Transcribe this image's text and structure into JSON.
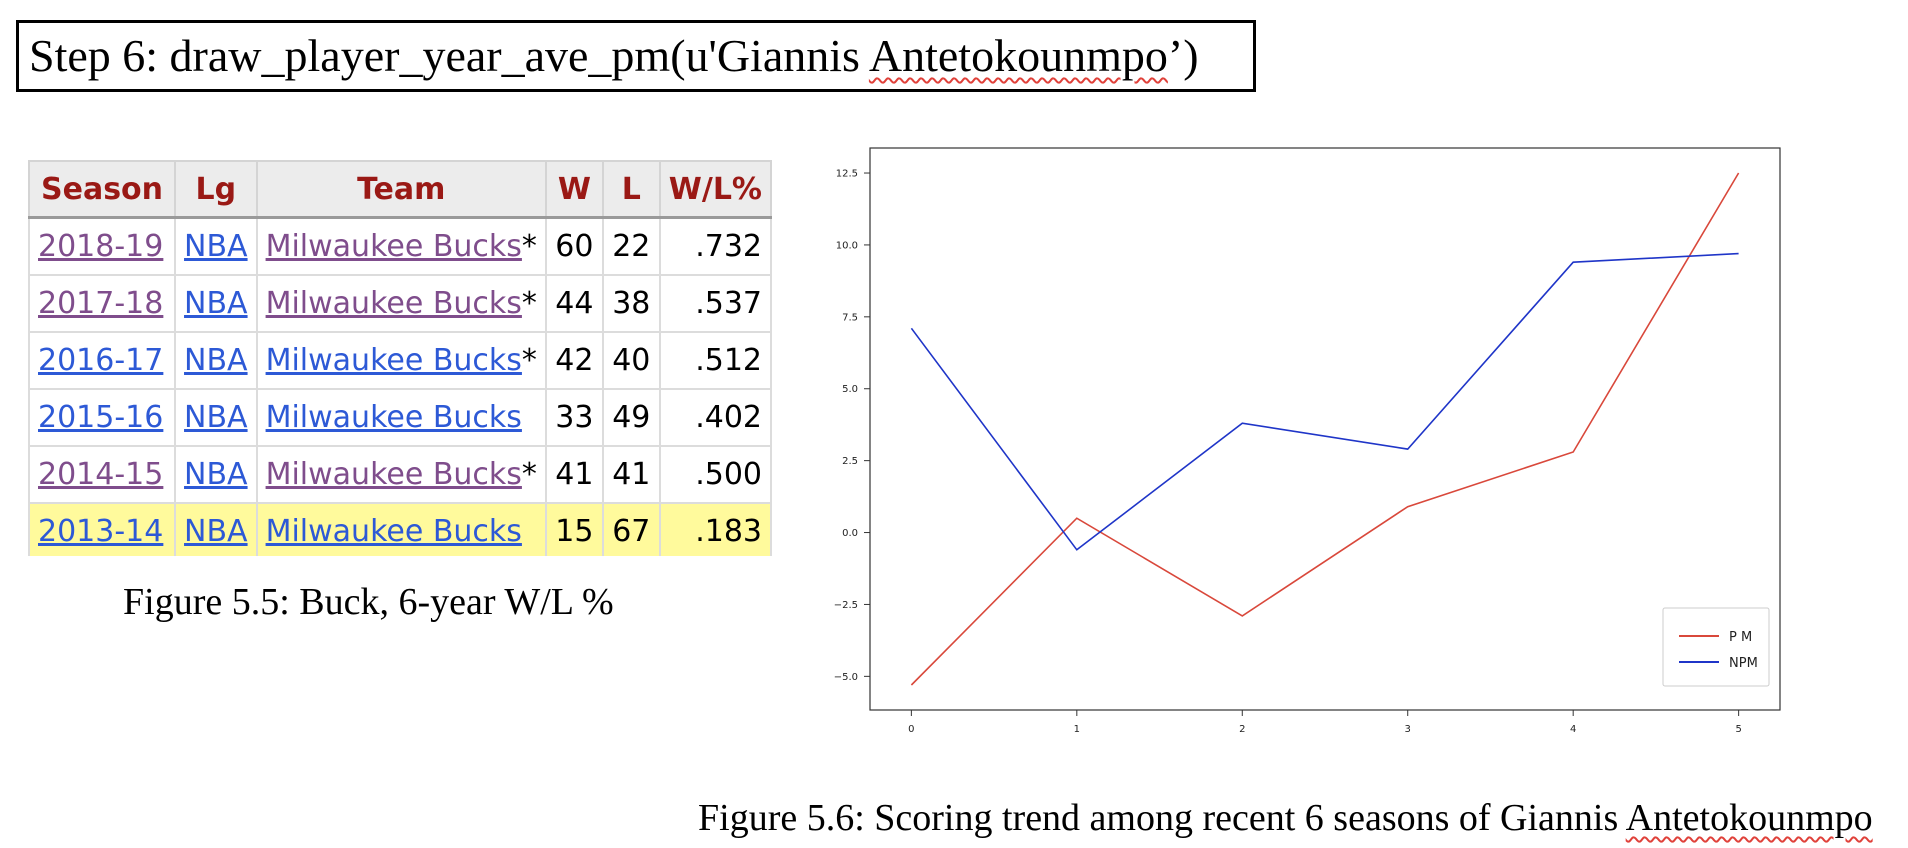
{
  "step": {
    "prefix": "Step 6: draw_player_year_ave_pm(u'Giannis ",
    "name": "Antetokounmpo",
    "suffix": "’)"
  },
  "table": {
    "headers": [
      "Season",
      "Lg",
      "Team",
      "W",
      "L",
      "W/L%"
    ],
    "rows": [
      {
        "season": "2018-19",
        "lg": "NBA",
        "team": "Milwaukee Bucks",
        "mark": "*",
        "w": "60",
        "l": "22",
        "pct": ".732",
        "visited": true,
        "highlight": false
      },
      {
        "season": "2017-18",
        "lg": "NBA",
        "team": "Milwaukee Bucks",
        "mark": "*",
        "w": "44",
        "l": "38",
        "pct": ".537",
        "visited": true,
        "highlight": false
      },
      {
        "season": "2016-17",
        "lg": "NBA",
        "team": "Milwaukee Bucks",
        "mark": "*",
        "w": "42",
        "l": "40",
        "pct": ".512",
        "visited": false,
        "highlight": false
      },
      {
        "season": "2015-16",
        "lg": "NBA",
        "team": "Milwaukee Bucks",
        "mark": "",
        "w": "33",
        "l": "49",
        "pct": ".402",
        "visited": false,
        "highlight": false
      },
      {
        "season": "2014-15",
        "lg": "NBA",
        "team": "Milwaukee Bucks",
        "mark": "*",
        "w": "41",
        "l": "41",
        "pct": ".500",
        "visited": true,
        "highlight": false
      },
      {
        "season": "2013-14",
        "lg": "NBA",
        "team": "Milwaukee Bucks",
        "mark": "",
        "w": "15",
        "l": "67",
        "pct": ".183",
        "visited": false,
        "highlight": true
      }
    ],
    "caption": "Figure 5.5: Buck, 6-year W/L %"
  },
  "chart_caption": {
    "prefix": "Figure 5.6: Scoring trend among recent 6 seasons of Giannis ",
    "name": "Antetokounmpo"
  },
  "colors": {
    "visited_link": "#7f4d8c",
    "link": "#2d59d6",
    "header_text": "#9a1915",
    "highlight_row": "#fffa9c",
    "pm_line": "#d9483b",
    "npm_line": "#1f35c8"
  },
  "chart_data": {
    "type": "line",
    "x": [
      0,
      1,
      2,
      3,
      4,
      5
    ],
    "series": [
      {
        "name": "P M",
        "color": "#d9483b",
        "values": [
          -5.3,
          0.5,
          -2.9,
          0.9,
          2.8,
          12.5
        ]
      },
      {
        "name": "NPM",
        "color": "#1f35c8",
        "values": [
          7.1,
          -0.6,
          3.8,
          2.9,
          9.4,
          9.7
        ]
      }
    ],
    "xticks": [
      "0",
      "1",
      "2",
      "3",
      "4",
      "5"
    ],
    "yticks": [
      "−5.0",
      "−2.5",
      "0.0",
      "2.5",
      "5.0",
      "7.5",
      "10.0",
      "12.5"
    ],
    "ytick_values": [
      -5,
      -2.5,
      0,
      2.5,
      5,
      7.5,
      10,
      12.5
    ],
    "xlim": [
      -0.25,
      5.25
    ],
    "ylim": [
      -6.17,
      13.37
    ],
    "grid": false,
    "legend_position": "lower-right",
    "title": "",
    "xlabel": "",
    "ylabel": ""
  }
}
